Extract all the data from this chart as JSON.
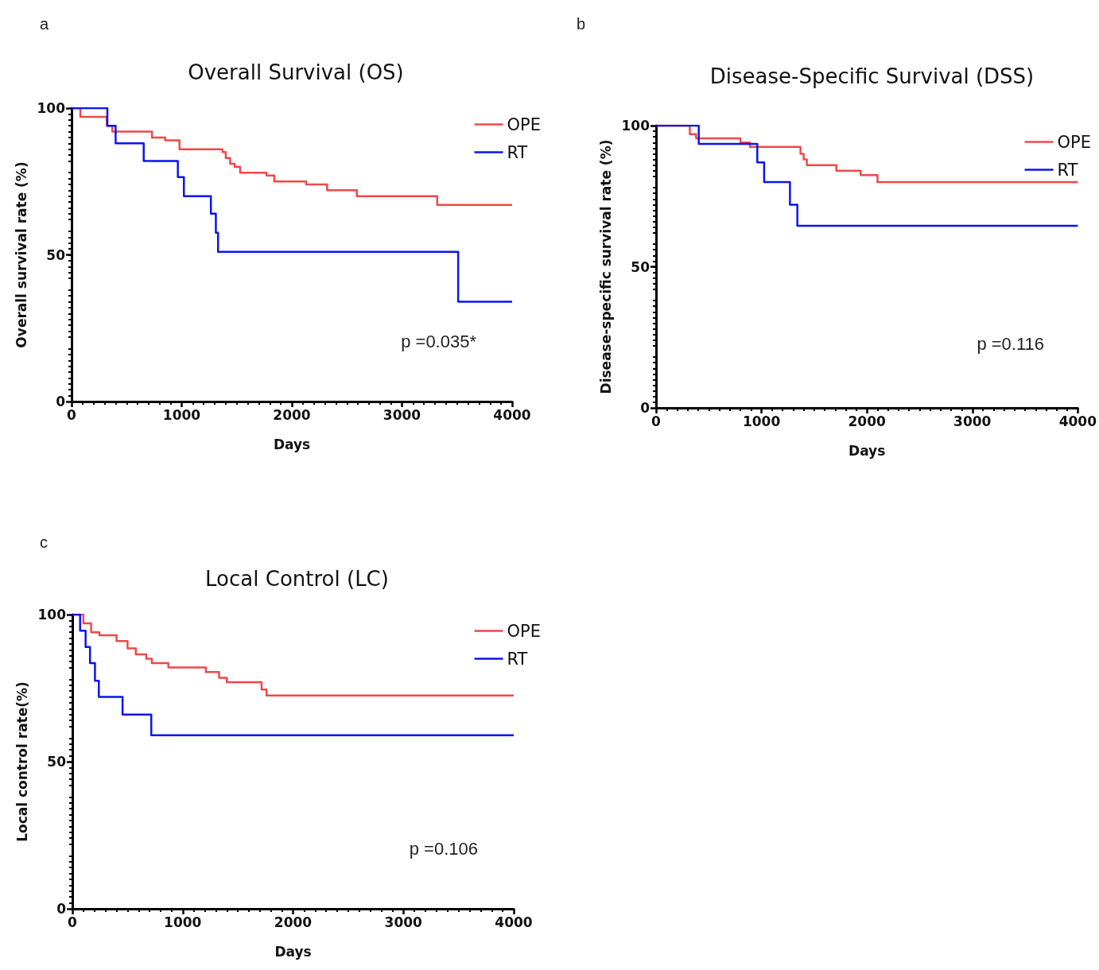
{
  "chart_data": [
    {
      "type": "step",
      "title": "Overall Survival (OS)",
      "xlabel": "Days",
      "ylabel": "Overall survival rate (%)",
      "annotations": [
        "a",
        "p =0.035*"
      ],
      "xlim": [
        0,
        4000
      ],
      "xticks": [
        0,
        1000,
        2000,
        3000,
        4000
      ],
      "ylim": [
        0,
        100
      ],
      "yticks": [
        0,
        50,
        100
      ],
      "grid": false,
      "legend": "top right",
      "marker": "none",
      "line_style": "solid",
      "series": [
        {
          "name": "OPE",
          "color": "#f04848",
          "x": [
            0,
            80,
            320,
            370,
            730,
            850,
            980,
            1370,
            1400,
            1440,
            1480,
            1530,
            1770,
            1840,
            2130,
            2320,
            2590,
            3320,
            4000
          ],
          "values": [
            100,
            97,
            94,
            92,
            90,
            89,
            86,
            85,
            83,
            81,
            80,
            78,
            77,
            75,
            74,
            72,
            70,
            67,
            67
          ]
        },
        {
          "name": "RT",
          "color": "#0a14f0",
          "x": [
            0,
            325,
            400,
            655,
            965,
            1020,
            1265,
            1310,
            1330,
            3510,
            4000
          ],
          "values": [
            100,
            94,
            88,
            82,
            76.5,
            70,
            64,
            57.5,
            51,
            34,
            34
          ]
        }
      ]
    },
    {
      "type": "step",
      "title": "Disease-Specific Survival (DSS)",
      "xlabel": "Days",
      "ylabel": "Disease-specific survival rate (%)",
      "annotations": [
        "b",
        "p =0.116"
      ],
      "xlim": [
        0,
        4000
      ],
      "xticks": [
        0,
        1000,
        2000,
        3000,
        4000
      ],
      "ylim": [
        0,
        100
      ],
      "yticks": [
        0,
        50,
        100
      ],
      "grid": false,
      "legend": "top right",
      "marker": "none",
      "line_style": "solid",
      "series": [
        {
          "name": "OPE",
          "color": "#f04848",
          "x": [
            0,
            320,
            380,
            800,
            890,
            1370,
            1400,
            1430,
            1710,
            1940,
            2100,
            4000
          ],
          "values": [
            100,
            97,
            95.5,
            94,
            92.5,
            90,
            88,
            86,
            84,
            82.5,
            80,
            80
          ]
        },
        {
          "name": "RT",
          "color": "#0a14f0",
          "x": [
            0,
            405,
            960,
            1025,
            1270,
            1340,
            4000
          ],
          "values": [
            100,
            93.5,
            87,
            80,
            72,
            64.5,
            64.5
          ]
        }
      ]
    },
    {
      "type": "step",
      "title": "Local Control (LC)",
      "xlabel": "Days",
      "ylabel": "Local control rate(%)",
      "annotations": [
        "c",
        "p =0.106"
      ],
      "xlim": [
        0,
        4000
      ],
      "xticks": [
        0,
        1000,
        2000,
        3000,
        4000
      ],
      "ylim": [
        0,
        100
      ],
      "yticks": [
        0,
        50,
        100
      ],
      "grid": false,
      "legend": "top right",
      "marker": "none",
      "line_style": "solid",
      "series": [
        {
          "name": "OPE",
          "color": "#f04848",
          "x": [
            0,
            100,
            170,
            245,
            400,
            500,
            575,
            670,
            720,
            870,
            1210,
            1330,
            1400,
            1715,
            1760,
            4000
          ],
          "values": [
            100,
            97,
            94,
            93,
            91,
            88.5,
            86.5,
            85,
            83.5,
            82,
            80.5,
            78.5,
            77,
            74.5,
            72.5,
            72.5
          ]
        },
        {
          "name": "RT",
          "color": "#0a14f0",
          "x": [
            0,
            70,
            120,
            160,
            205,
            240,
            455,
            715,
            4000
          ],
          "values": [
            100,
            94.5,
            89,
            83.5,
            77.5,
            72,
            66,
            59,
            59
          ]
        }
      ]
    }
  ]
}
